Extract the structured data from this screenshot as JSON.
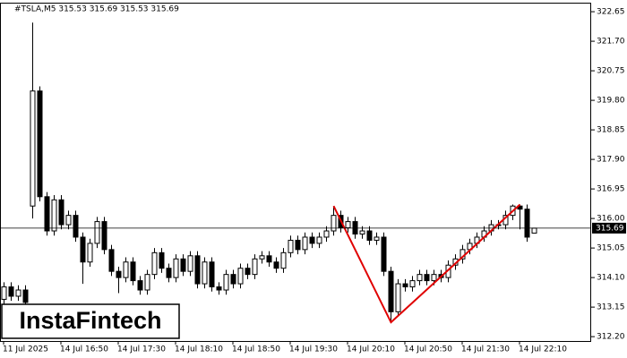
{
  "chart_data": {
    "type": "candlestick",
    "title": "#TSLA,M5  315.53 315.69 315.53 315.69",
    "watermark": "InstaFintech",
    "categories": [
      "11 Jul 2025",
      null,
      null,
      null,
      null,
      null,
      null,
      null,
      "14 Jul 16:50",
      null,
      null,
      null,
      null,
      null,
      null,
      null,
      "14 Jul 17:30",
      null,
      null,
      null,
      null,
      null,
      null,
      null,
      "14 Jul 18:10",
      null,
      null,
      null,
      null,
      null,
      null,
      null,
      "14 Jul 18:50",
      null,
      null,
      null,
      null,
      null,
      null,
      null,
      "14 Jul 19:30",
      null,
      null,
      null,
      null,
      null,
      null,
      null,
      "14 Jul 20:10",
      null,
      null,
      null,
      null,
      null,
      null,
      null,
      "14 Jul 20:50",
      null,
      null,
      null,
      null,
      null,
      null,
      null,
      "14 Jul 21:30",
      null,
      null,
      null,
      null,
      null,
      null,
      null,
      "14 Jul 22:10",
      null,
      null
    ],
    "open": [
      313.4,
      313.8,
      313.5,
      313.7,
      316.4,
      320.1,
      316.7,
      315.6,
      316.6,
      315.8,
      316.1,
      315.4,
      314.6,
      315.2,
      315.9,
      315.0,
      314.3,
      314.1,
      314.6,
      314.0,
      313.7,
      314.2,
      314.9,
      314.4,
      314.1,
      314.7,
      314.3,
      314.8,
      313.9,
      314.6,
      313.8,
      313.7,
      314.2,
      313.9,
      314.4,
      314.2,
      314.7,
      314.8,
      314.6,
      314.4,
      314.9,
      315.3,
      315.0,
      315.4,
      315.2,
      315.4,
      315.6,
      316.1,
      315.7,
      315.9,
      315.5,
      315.6,
      315.3,
      315.4,
      314.3,
      313.0,
      313.9,
      313.8,
      314.0,
      314.2,
      314.0,
      314.2,
      314.1,
      314.5,
      314.7,
      315.0,
      315.2,
      315.4,
      315.6,
      315.8,
      315.8,
      316.1,
      316.4,
      316.3,
      315.53
    ],
    "high": [
      313.95,
      313.95,
      313.85,
      313.85,
      322.3,
      320.25,
      316.85,
      316.75,
      316.75,
      316.25,
      316.25,
      315.55,
      315.35,
      316.05,
      316.05,
      315.15,
      314.45,
      314.75,
      314.75,
      314.15,
      314.35,
      315.05,
      315.05,
      314.55,
      314.85,
      314.85,
      314.95,
      314.95,
      314.75,
      314.75,
      313.95,
      314.35,
      314.35,
      314.55,
      314.55,
      314.85,
      314.95,
      314.95,
      314.75,
      315.05,
      315.45,
      315.45,
      315.55,
      315.55,
      315.55,
      315.75,
      316.4,
      316.25,
      316.05,
      316.05,
      315.75,
      315.75,
      315.55,
      315.55,
      314.45,
      314.05,
      314.05,
      314.15,
      314.35,
      314.35,
      314.35,
      314.35,
      314.65,
      314.85,
      315.15,
      315.35,
      315.55,
      315.75,
      315.95,
      315.95,
      316.25,
      316.45,
      316.45,
      316.45,
      315.69
    ],
    "low": [
      313.25,
      313.35,
      313.35,
      313.0,
      316.0,
      316.55,
      315.45,
      315.45,
      315.65,
      315.65,
      315.25,
      313.9,
      314.45,
      315.05,
      314.85,
      314.15,
      313.6,
      313.95,
      313.85,
      313.55,
      313.55,
      314.05,
      314.25,
      313.95,
      313.95,
      314.15,
      314.15,
      313.75,
      313.75,
      313.65,
      313.55,
      313.55,
      313.75,
      313.75,
      314.05,
      314.05,
      314.55,
      314.45,
      314.25,
      314.25,
      314.75,
      314.85,
      314.85,
      315.05,
      315.05,
      315.25,
      315.45,
      315.55,
      315.55,
      315.35,
      315.35,
      315.15,
      315.15,
      314.15,
      312.66,
      312.85,
      313.65,
      313.65,
      313.85,
      313.85,
      313.85,
      313.95,
      313.95,
      314.35,
      314.55,
      314.85,
      315.05,
      315.25,
      315.45,
      315.65,
      315.65,
      315.95,
      315.65,
      315.25,
      315.53
    ],
    "close": [
      313.8,
      313.5,
      313.7,
      313.3,
      320.1,
      316.7,
      315.6,
      316.6,
      315.8,
      316.1,
      315.4,
      314.6,
      315.2,
      315.9,
      315.0,
      314.3,
      314.1,
      314.6,
      314.0,
      313.7,
      314.2,
      314.9,
      314.4,
      314.1,
      314.7,
      314.3,
      314.8,
      313.9,
      314.6,
      313.8,
      313.7,
      314.2,
      313.9,
      314.4,
      314.2,
      314.7,
      314.8,
      314.6,
      314.4,
      314.9,
      315.3,
      315.0,
      315.4,
      315.2,
      315.4,
      315.6,
      316.1,
      315.7,
      315.9,
      315.5,
      315.6,
      315.3,
      315.4,
      314.3,
      313.0,
      313.9,
      313.8,
      314.0,
      314.2,
      314.0,
      314.2,
      314.1,
      314.5,
      314.7,
      315.0,
      315.2,
      315.4,
      315.6,
      315.8,
      315.8,
      316.1,
      316.4,
      316.3,
      315.4,
      315.69
    ],
    "bull_color": "#ffffff",
    "bear_color": "#000000",
    "last_price": 315.69,
    "pattern": {
      "color": "#e00000",
      "x": [
        46,
        54,
        72
      ],
      "y": [
        316.4,
        312.66,
        316.45
      ]
    },
    "ylim": [
      312.06,
      322.94
    ],
    "yticks": [
      322.65,
      {
        "value": 321.7,
        "label": "321.70"
      },
      320.75,
      {
        "value": 319.8,
        "label": "319.80"
      },
      318.85,
      {
        "value": 317.9,
        "label": "317.90"
      },
      316.95,
      {
        "value": 316,
        "label": "316.00"
      },
      315.05,
      {
        "value": 314.1,
        "label": "314.10"
      },
      313.15,
      {
        "value": 312.2,
        "label": "312.20"
      }
    ]
  }
}
